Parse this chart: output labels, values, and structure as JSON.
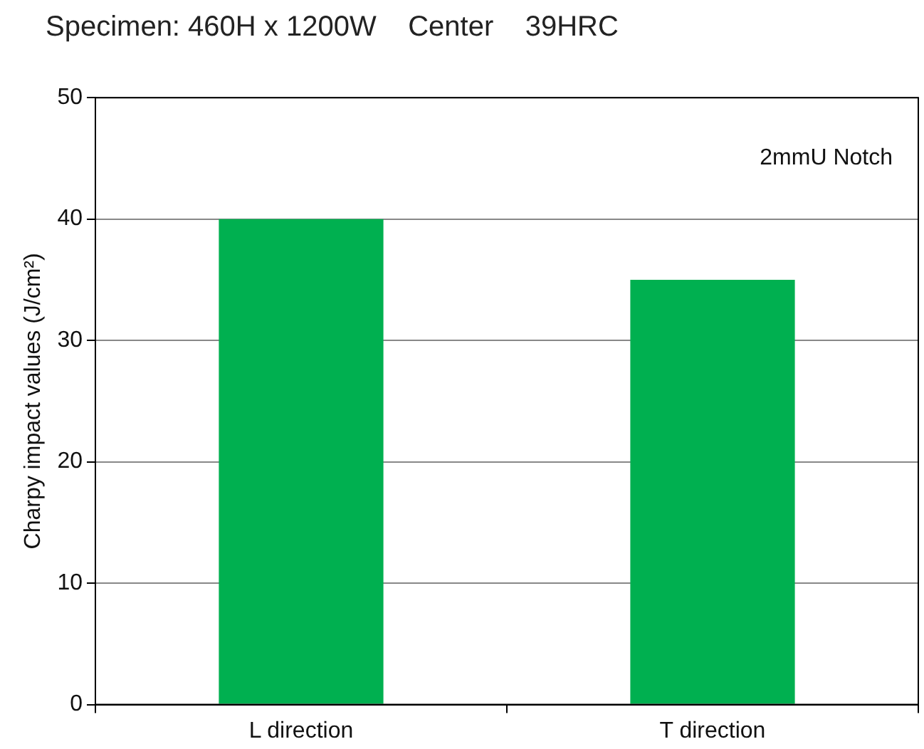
{
  "chart_data": {
    "type": "bar",
    "title": "Specimen: 460H x 1200W    Center    39HRC",
    "ylabel": "Charpy impact values (J/cm²)",
    "categories": [
      "L direction",
      "T direction"
    ],
    "values": [
      40,
      35
    ],
    "color": "#00b050",
    "ylim": [
      0,
      50
    ],
    "yticks": [
      0,
      10,
      20,
      30,
      40,
      50
    ],
    "grid": "y",
    "legend": false,
    "annotations": [
      "2mmU Notch"
    ]
  }
}
